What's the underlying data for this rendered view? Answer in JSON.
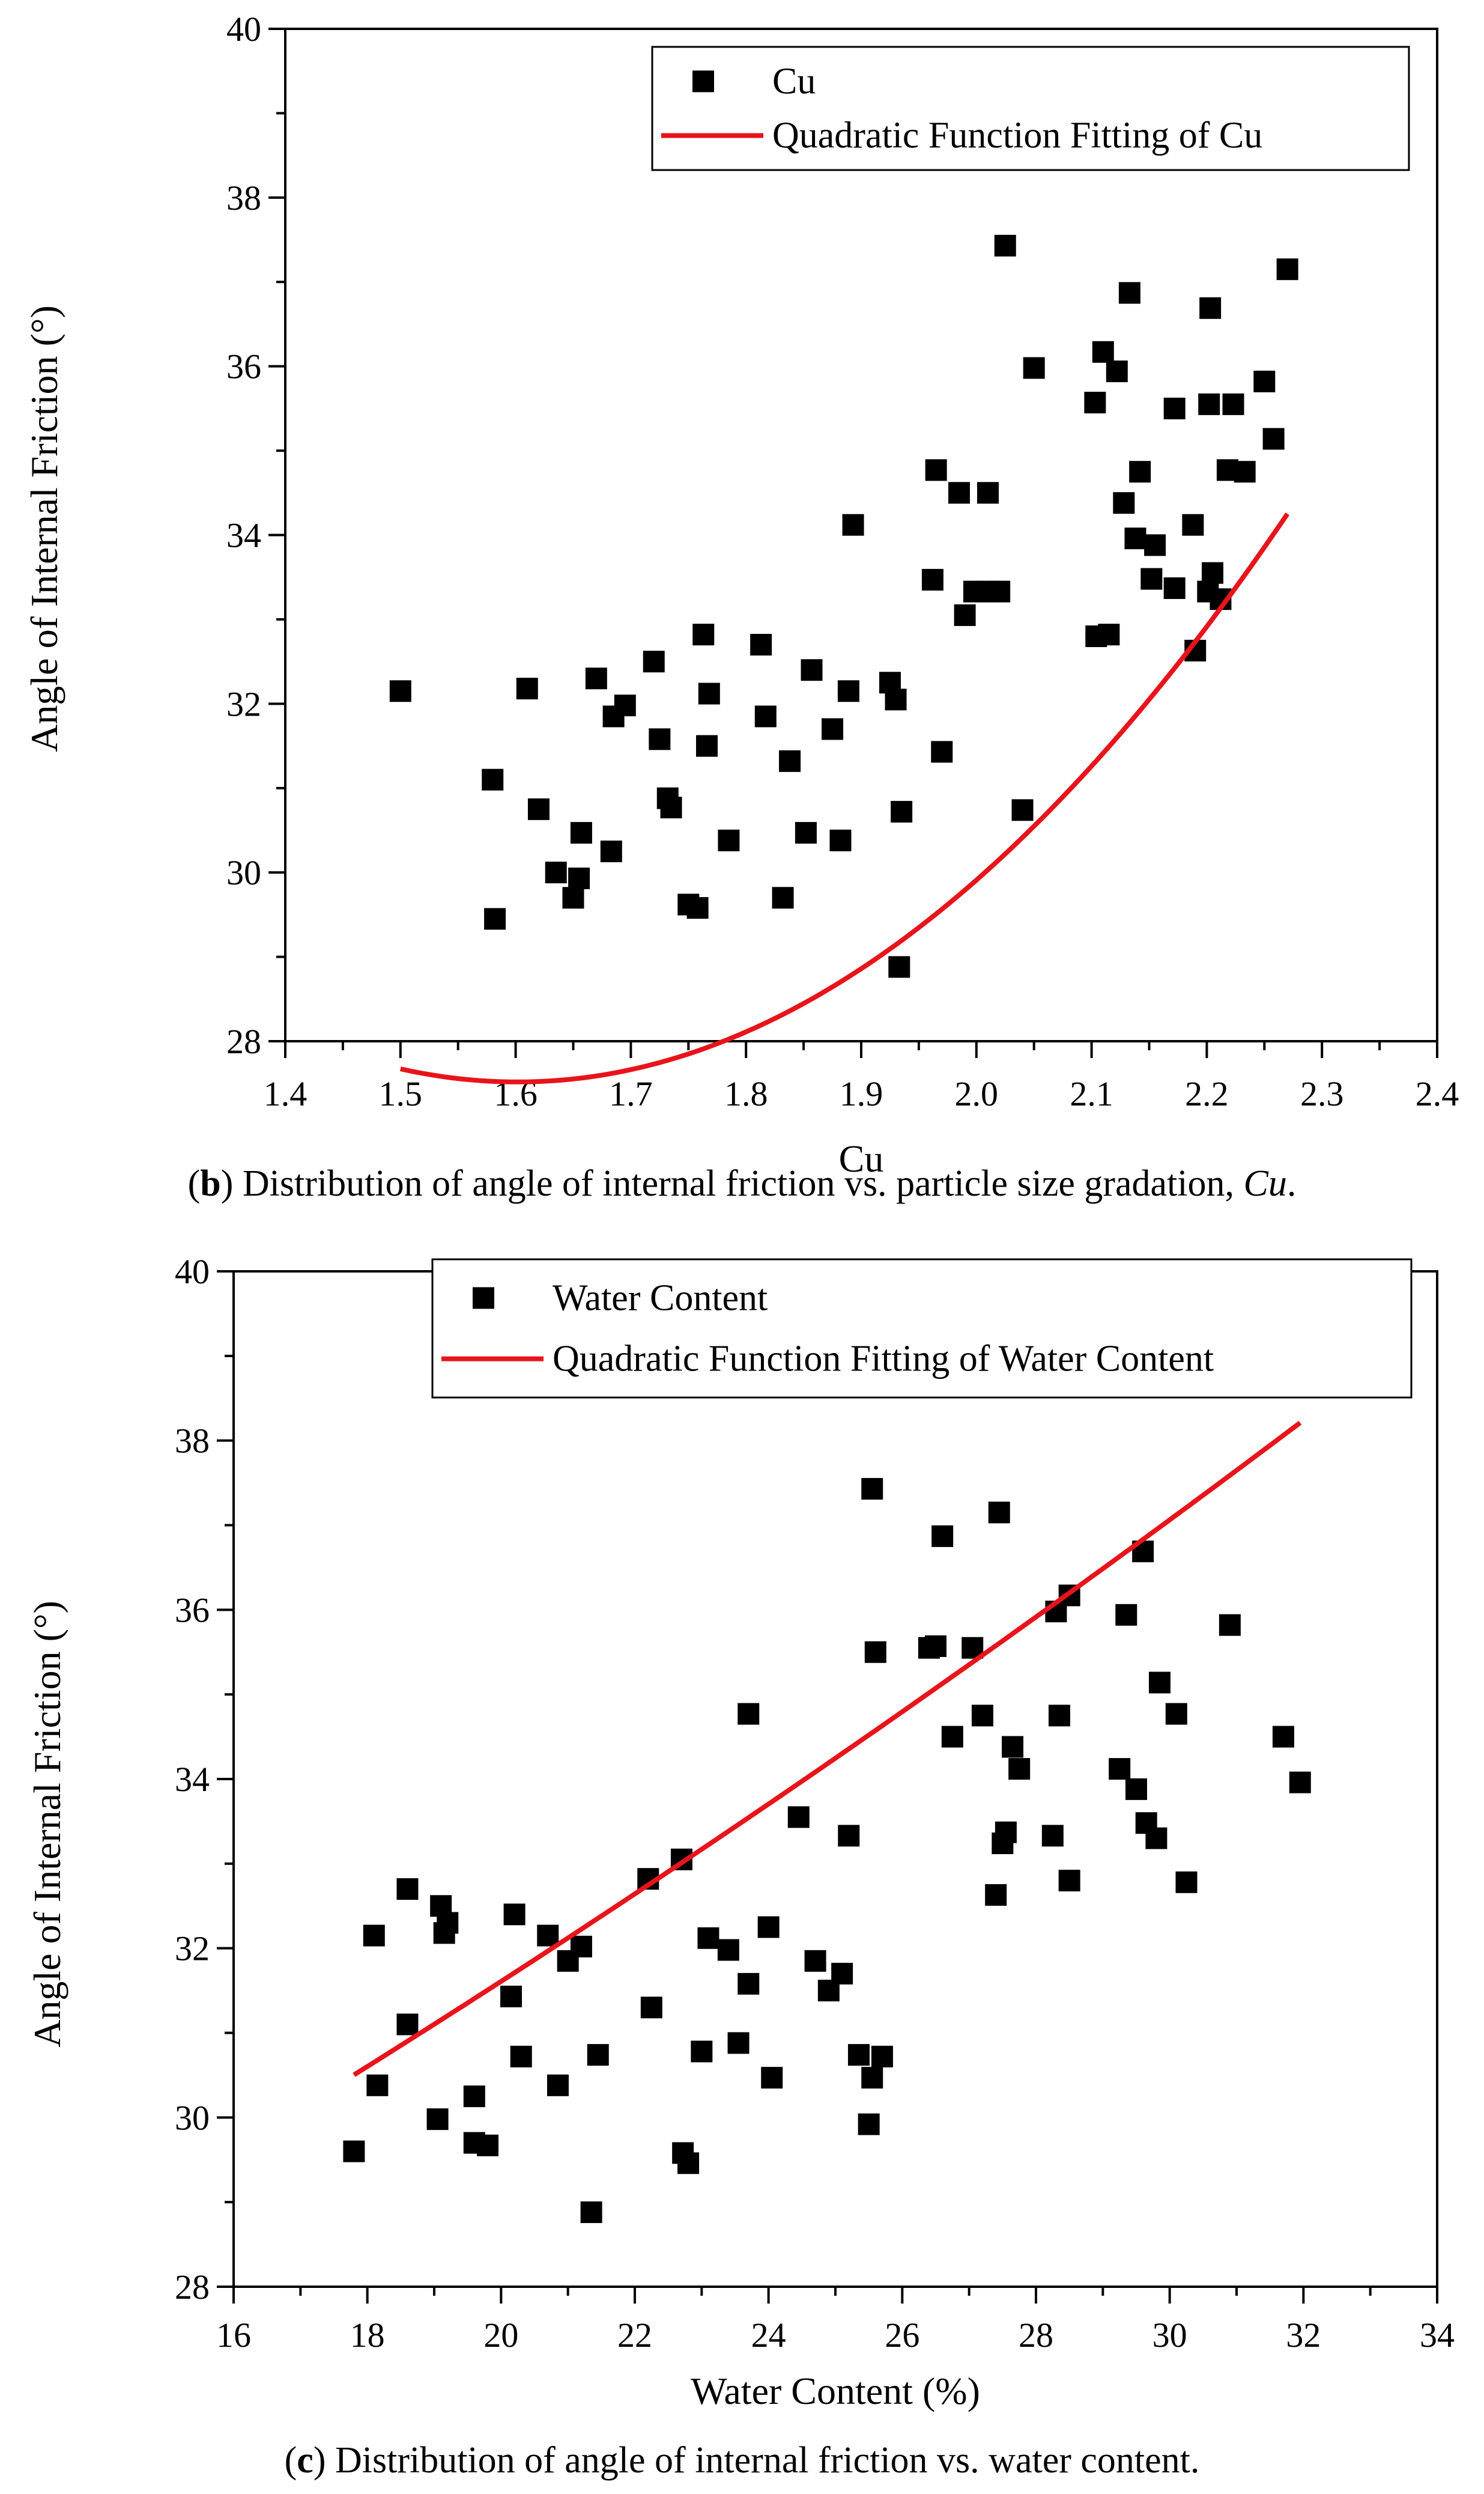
{
  "chart_data": [
    {
      "type": "scatter",
      "panel": "b",
      "xlabel": "Cu",
      "ylabel": "Angle of Internal Friction (°)",
      "xlim": [
        1.4,
        2.4
      ],
      "ylim": [
        28,
        40
      ],
      "xticks": [
        "1.4",
        "1.5",
        "1.6",
        "1.7",
        "1.8",
        "1.9",
        "2.0",
        "2.1",
        "2.2",
        "2.3",
        "2.4"
      ],
      "yticks": [
        "28",
        "30",
        "32",
        "34",
        "36",
        "38",
        "40"
      ],
      "legend_position": "top-right",
      "legend": {
        "scatter": "Cu",
        "fit": "Quadratic Function Fitting of Cu"
      },
      "series": [
        {
          "name": "Cu",
          "kind": "points",
          "points": [
            [
              1.5,
              32.15
            ],
            [
              1.58,
              31.1
            ],
            [
              1.582,
              29.45
            ],
            [
              1.61,
              32.18
            ],
            [
              1.62,
              30.75
            ],
            [
              1.635,
              30.0
            ],
            [
              1.65,
              29.7
            ],
            [
              1.655,
              29.93
            ],
            [
              1.657,
              30.47
            ],
            [
              1.67,
              32.3
            ],
            [
              1.683,
              30.25
            ],
            [
              1.685,
              31.85
            ],
            [
              1.695,
              31.98
            ],
            [
              1.72,
              32.5
            ],
            [
              1.725,
              31.58
            ],
            [
              1.732,
              30.88
            ],
            [
              1.735,
              30.77
            ],
            [
              1.75,
              29.62
            ],
            [
              1.758,
              29.58
            ],
            [
              1.763,
              32.82
            ],
            [
              1.766,
              31.5
            ],
            [
              1.768,
              32.12
            ],
            [
              1.785,
              30.38
            ],
            [
              1.813,
              32.7
            ],
            [
              1.817,
              31.85
            ],
            [
              1.832,
              29.7
            ],
            [
              1.838,
              31.32
            ],
            [
              1.852,
              30.47
            ],
            [
              1.857,
              32.4
            ],
            [
              1.875,
              31.7
            ],
            [
              1.882,
              30.38
            ],
            [
              1.889,
              32.15
            ],
            [
              1.893,
              34.12
            ],
            [
              1.925,
              32.25
            ],
            [
              1.93,
              32.05
            ],
            [
              1.933,
              28.88
            ],
            [
              1.935,
              30.72
            ],
            [
              1.962,
              33.47
            ],
            [
              1.965,
              34.77
            ],
            [
              1.97,
              31.43
            ],
            [
              1.985,
              34.5
            ],
            [
              1.99,
              33.05
            ],
            [
              1.998,
              33.33
            ],
            [
              2.01,
              33.33
            ],
            [
              2.01,
              34.5
            ],
            [
              2.02,
              33.33
            ],
            [
              2.025,
              37.43
            ],
            [
              2.04,
              30.74
            ],
            [
              2.05,
              35.98
            ],
            [
              2.103,
              35.57
            ],
            [
              2.104,
              32.8
            ],
            [
              2.11,
              36.17
            ],
            [
              2.115,
              32.82
            ],
            [
              2.122,
              35.94
            ],
            [
              2.128,
              34.38
            ],
            [
              2.133,
              36.87
            ],
            [
              2.138,
              33.96
            ],
            [
              2.142,
              34.75
            ],
            [
              2.152,
              33.48
            ],
            [
              2.155,
              33.88
            ],
            [
              2.172,
              35.5
            ],
            [
              2.172,
              33.37
            ],
            [
              2.188,
              34.12
            ],
            [
              2.19,
              32.63
            ],
            [
              2.201,
              33.33
            ],
            [
              2.202,
              35.55
            ],
            [
              2.203,
              36.69
            ],
            [
              2.205,
              33.55
            ],
            [
              2.212,
              33.24
            ],
            [
              2.218,
              34.77
            ],
            [
              2.223,
              35.55
            ],
            [
              2.233,
              34.75
            ],
            [
              2.25,
              35.82
            ],
            [
              2.258,
              35.14
            ],
            [
              2.27,
              37.15
            ]
          ]
        },
        {
          "name": "Quadratic Function Fitting of Cu",
          "kind": "curve",
          "x_range": [
            1.5,
            2.27
          ],
          "coefficients": [
            66.17,
            -48.27,
            15.07
          ]
        }
      ]
    },
    {
      "type": "scatter",
      "panel": "c",
      "xlabel": "Water Content (%)",
      "ylabel": "Angle of Internal Friction (°)",
      "xlim": [
        16,
        34
      ],
      "ylim": [
        28,
        40
      ],
      "xticks": [
        "16",
        "18",
        "20",
        "22",
        "24",
        "26",
        "28",
        "30",
        "32",
        "34"
      ],
      "yticks": [
        "28",
        "30",
        "32",
        "34",
        "36",
        "38",
        "40"
      ],
      "legend_position": "top-right",
      "legend": {
        "scatter": "Water Content",
        "fit": "Quadratic Function Fitting of Water Content"
      },
      "series": [
        {
          "name": "Water Content",
          "kind": "points",
          "points": [
            [
              17.8,
              29.6
            ],
            [
              18.1,
              32.15
            ],
            [
              18.15,
              30.38
            ],
            [
              18.6,
              31.1
            ],
            [
              18.6,
              32.7
            ],
            [
              19.05,
              29.98
            ],
            [
              19.1,
              32.5
            ],
            [
              19.15,
              32.18
            ],
            [
              19.2,
              32.3
            ],
            [
              19.6,
              29.7
            ],
            [
              19.6,
              30.25
            ],
            [
              19.8,
              29.67
            ],
            [
              20.15,
              31.43
            ],
            [
              20.2,
              32.4
            ],
            [
              20.3,
              30.72
            ],
            [
              20.7,
              32.15
            ],
            [
              20.85,
              30.38
            ],
            [
              21.0,
              31.85
            ],
            [
              21.2,
              32.02
            ],
            [
              21.35,
              28.88
            ],
            [
              21.45,
              30.74
            ],
            [
              22.2,
              32.82
            ],
            [
              22.25,
              31.3
            ],
            [
              22.7,
              33.05
            ],
            [
              22.72,
              29.58
            ],
            [
              22.8,
              29.46
            ],
            [
              23.0,
              30.78
            ],
            [
              23.1,
              32.12
            ],
            [
              23.4,
              31.98
            ],
            [
              23.55,
              30.88
            ],
            [
              23.7,
              34.77
            ],
            [
              23.7,
              31.58
            ],
            [
              24.0,
              32.25
            ],
            [
              24.05,
              30.47
            ],
            [
              24.45,
              33.55
            ],
            [
              24.7,
              31.85
            ],
            [
              24.9,
              31.5
            ],
            [
              25.1,
              31.7
            ],
            [
              25.2,
              33.33
            ],
            [
              25.35,
              30.74
            ],
            [
              25.5,
              29.92
            ],
            [
              25.55,
              30.47
            ],
            [
              25.55,
              37.43
            ],
            [
              25.6,
              35.5
            ],
            [
              25.7,
              30.72
            ],
            [
              26.4,
              35.55
            ],
            [
              26.5,
              35.57
            ],
            [
              26.6,
              36.87
            ],
            [
              26.75,
              34.5
            ],
            [
              27.05,
              35.55
            ],
            [
              27.2,
              34.75
            ],
            [
              27.4,
              32.63
            ],
            [
              27.45,
              37.15
            ],
            [
              27.5,
              33.24
            ],
            [
              27.55,
              33.37
            ],
            [
              27.65,
              34.38
            ],
            [
              27.75,
              34.12
            ],
            [
              28.25,
              33.33
            ],
            [
              28.3,
              35.98
            ],
            [
              28.35,
              34.75
            ],
            [
              28.5,
              36.17
            ],
            [
              28.5,
              32.8
            ],
            [
              29.25,
              34.12
            ],
            [
              29.35,
              35.94
            ],
            [
              29.5,
              33.88
            ],
            [
              29.6,
              36.69
            ],
            [
              29.65,
              33.48
            ],
            [
              29.8,
              33.3
            ],
            [
              29.85,
              35.14
            ],
            [
              30.1,
              34.77
            ],
            [
              30.25,
              32.78
            ],
            [
              30.9,
              35.82
            ],
            [
              31.7,
              34.5
            ],
            [
              31.95,
              33.96
            ]
          ]
        },
        {
          "name": "Quadratic Function Fitting of Water Content",
          "kind": "curve",
          "x_range": [
            17.8,
            31.95
          ],
          "coefficients": [
            22.84,
            0.367,
            0.00357
          ]
        }
      ]
    }
  ],
  "captions": {
    "b": {
      "letter": "b",
      "text": " Distribution of angle of internal friction vs. particle size gradation, ",
      "italic": "Cu",
      "end": "."
    },
    "c": {
      "letter": "c",
      "text": " Distribution of angle of internal friction vs. water content."
    }
  },
  "colors": {
    "marker": "#000000",
    "fit": "#e8141b",
    "axis": "#000000"
  }
}
